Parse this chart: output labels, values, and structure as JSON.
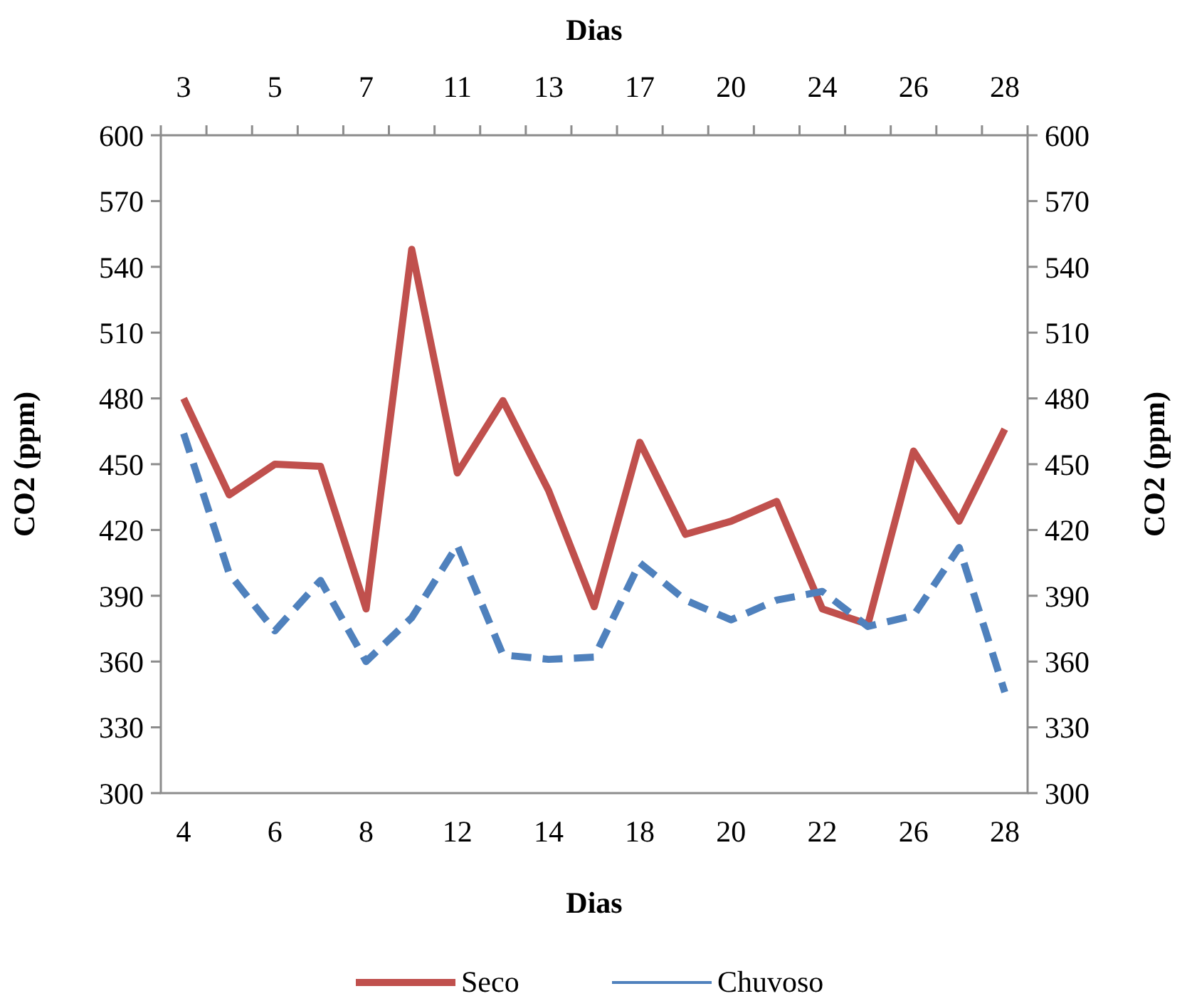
{
  "chart_data": {
    "type": "line",
    "xlabel": "Dias",
    "x2label": "Dias",
    "ylabel": "CO2 (ppm)",
    "y2label": "CO2 (ppm)",
    "categories": [
      "4",
      null,
      "6",
      null,
      "8",
      null,
      "12",
      null,
      "14",
      null,
      "18",
      null,
      "20",
      null,
      "22",
      null,
      "26",
      null,
      "28"
    ],
    "annotations": [
      "3",
      "5",
      "7",
      "11",
      "13",
      "17",
      "20",
      "24",
      "26",
      "28"
    ],
    "ylim": [
      300,
      600
    ],
    "yticks": [
      300,
      330,
      360,
      390,
      420,
      450,
      480,
      510,
      540,
      570,
      600
    ],
    "y2lim": [
      300,
      600
    ],
    "y2ticks": [
      300,
      330,
      360,
      390,
      420,
      450,
      480,
      510,
      540,
      570,
      600
    ],
    "series": [
      {
        "name": "Seco",
        "color": "#c0504d",
        "line_style": "solid",
        "values": [
          480,
          436,
          450,
          449,
          384,
          548,
          446,
          479,
          438,
          385,
          460,
          418,
          424,
          433,
          384,
          377,
          456,
          424,
          466
        ]
      },
      {
        "name": "Chuvoso",
        "color": "#4f81bd",
        "line_style": "dashed",
        "values": [
          464,
          400,
          374,
          397,
          360,
          380,
          413,
          363,
          361,
          362,
          405,
          388,
          379,
          388,
          392,
          376,
          381,
          412,
          346
        ]
      }
    ],
    "grid": false,
    "legend": "bottom",
    "marker": "none"
  }
}
